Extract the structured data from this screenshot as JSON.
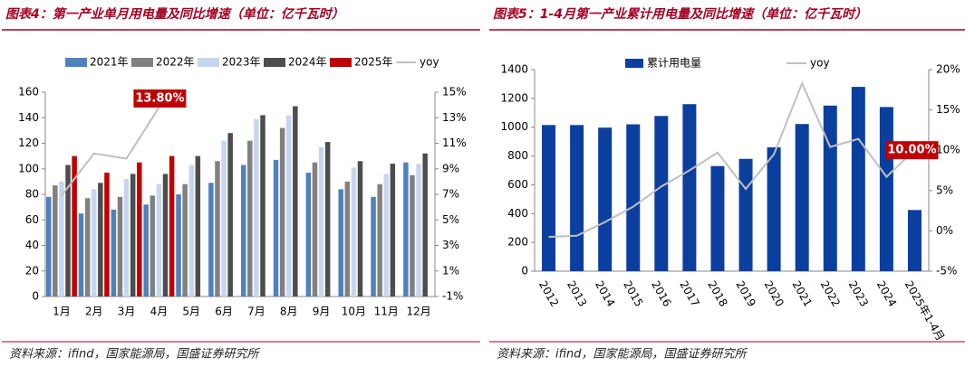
{
  "chart_data": [
    {
      "type": "bar",
      "title": "图表4：第一产业单月用电量及同比增速（单位：亿千瓦时）",
      "source": "资料来源：ifind，国家能源局，国盛证券研究所",
      "categories": [
        "1月",
        "2月",
        "3月",
        "4月",
        "5月",
        "6月",
        "7月",
        "8月",
        "9月",
        "10月",
        "11月",
        "12月"
      ],
      "series": [
        {
          "name": "2021年",
          "color": "#4f81bd",
          "values": [
            78,
            65,
            68,
            72,
            80,
            89,
            103,
            107,
            97,
            84,
            78,
            105
          ]
        },
        {
          "name": "2022年",
          "color": "#808080",
          "values": [
            87,
            77,
            78,
            79,
            88,
            106,
            122,
            132,
            105,
            90,
            88,
            95
          ]
        },
        {
          "name": "2023年",
          "color": "#c6d6ee",
          "values": [
            90,
            84,
            92,
            88,
            103,
            122,
            139,
            142,
            117,
            101,
            96,
            104
          ]
        },
        {
          "name": "2024年",
          "color": "#4d4d4d",
          "values": [
            103,
            89,
            96,
            96,
            110,
            128,
            142,
            149,
            121,
            106,
            104,
            112
          ]
        },
        {
          "name": "2025年",
          "color": "#c00000",
          "values": [
            110,
            97,
            105,
            110,
            null,
            null,
            null,
            null,
            null,
            null,
            null,
            null
          ]
        },
        {
          "name": "yoy",
          "type": "line",
          "axis": "y2",
          "color": "#bfbfbf",
          "values": [
            6.9,
            10.2,
            9.8,
            13.8,
            null,
            null,
            null,
            null,
            null,
            null,
            null,
            null
          ],
          "value_labels": [
            null,
            null,
            null,
            "13.80%",
            null,
            null,
            null,
            null,
            null,
            null,
            null,
            null
          ]
        }
      ],
      "ylim": [
        0,
        160
      ],
      "yticks": [
        0,
        20,
        40,
        60,
        80,
        100,
        120,
        140,
        160
      ],
      "y2lim": [
        -1,
        15
      ],
      "y2ticks": [
        {
          "value": -1,
          "label": "-1%"
        },
        {
          "value": 1,
          "label": "1%"
        },
        {
          "value": 3,
          "label": "3%"
        },
        {
          "value": 5,
          "label": "5%"
        },
        {
          "value": 7,
          "label": "7%"
        },
        {
          "value": 9,
          "label": "9%"
        },
        {
          "value": 11,
          "label": "11%"
        },
        {
          "value": 13,
          "label": "13%"
        },
        {
          "value": 15,
          "label": "15%"
        }
      ],
      "legend": "top"
    },
    {
      "type": "bar",
      "title": "图表5：1-4月第一产业累计用电量及同比增速（单位：亿千瓦时）",
      "source": "资料来源：ifind，国家能源局，国盛证券研究所",
      "categories": [
        "2012",
        "2013",
        "2014",
        "2015",
        "2016",
        "2017",
        "2018",
        "2019",
        "2020",
        "2021",
        "2022",
        "2023",
        "2024",
        "2025年1-4月"
      ],
      "series": [
        {
          "name": "累计用电量",
          "color": "#0b3f9f",
          "values": [
            1015,
            1015,
            997,
            1020,
            1078,
            1160,
            730,
            780,
            860,
            1022,
            1150,
            1280,
            1140,
            425
          ]
        },
        {
          "name": "yoy",
          "type": "line",
          "axis": "y2",
          "color": "#c0c0c0",
          "values": [
            -0.75,
            -0.6,
            1.1,
            3,
            5.5,
            7.5,
            9.7,
            5.2,
            9.5,
            18.3,
            10.4,
            11.4,
            6.7,
            10
          ],
          "value_labels": [
            null,
            null,
            null,
            null,
            null,
            null,
            null,
            null,
            null,
            null,
            null,
            null,
            null,
            "10.00%"
          ]
        }
      ],
      "ylim": [
        0,
        1400
      ],
      "yticks": [
        0,
        200,
        400,
        600,
        800,
        1000,
        1200,
        1400
      ],
      "y2lim": [
        -5,
        20
      ],
      "y2ticks": [
        {
          "value": -5,
          "label": "-5%"
        },
        {
          "value": 0,
          "label": "0%"
        },
        {
          "value": 5,
          "label": "5%"
        },
        {
          "value": 10,
          "label": "10%"
        },
        {
          "value": 15,
          "label": "15%"
        },
        {
          "value": 20,
          "label": "20%"
        }
      ],
      "legend": "top"
    }
  ]
}
